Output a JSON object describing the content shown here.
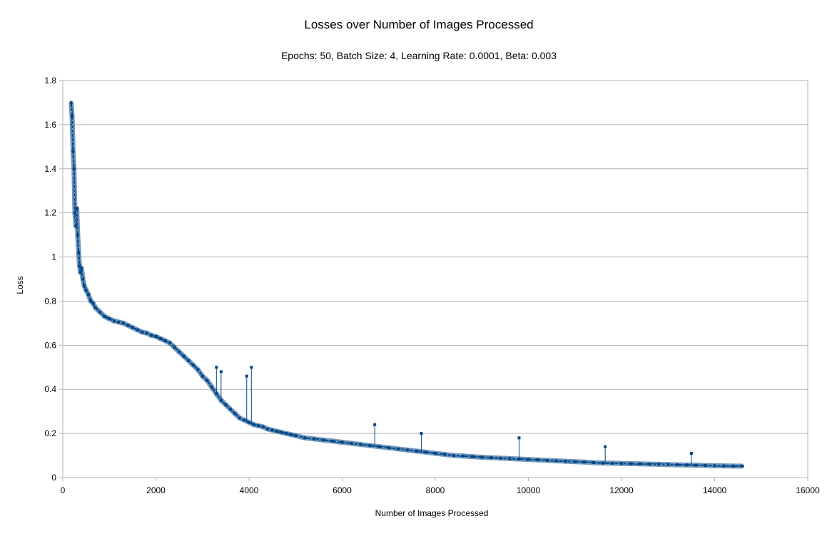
{
  "chart_data": {
    "type": "line",
    "title": "Losses over Number of Images Processed",
    "subtitle": "Epochs: 50, Batch Size: 4, Learning Rate: 0.0001, Beta: 0.003",
    "xlabel": "Number of Images Processed",
    "ylabel": "Loss",
    "xlim": [
      0,
      16000
    ],
    "ylim": [
      0,
      1.8
    ],
    "x_ticks": [
      0,
      2000,
      4000,
      6000,
      8000,
      10000,
      12000,
      14000,
      16000
    ],
    "y_ticks": [
      0,
      0.2,
      0.4,
      0.6,
      0.8,
      1,
      1.2,
      1.4,
      1.6,
      1.8
    ],
    "grid": "horizontal",
    "legend": "none",
    "series_color": "#004586",
    "series": [
      {
        "x": [
          180,
          200,
          220,
          240,
          260,
          280,
          300,
          320,
          340,
          360,
          380,
          400,
          430,
          460,
          500,
          550,
          600,
          650,
          700,
          800,
          900,
          1000,
          1100,
          1200,
          1300,
          1400,
          1500,
          1600,
          1700,
          1800,
          1900,
          2000,
          2100,
          2200,
          2300,
          2400,
          2500,
          2600,
          2700,
          2800,
          2900,
          3000,
          3100,
          3200,
          3300,
          3400,
          3500,
          3600,
          3700,
          3800,
          3900,
          4000,
          4100,
          4200,
          4300,
          4400,
          4500,
          4600,
          4700,
          4800,
          4900,
          5000,
          5200,
          5400,
          5600,
          5800,
          6000,
          6200,
          6400,
          6600,
          6800,
          7000,
          7200,
          7400,
          7600,
          7800,
          8000,
          8200,
          8400,
          8600,
          8800,
          9000,
          9200,
          9400,
          9600,
          9800,
          10000,
          10200,
          10400,
          10600,
          10800,
          11000,
          11200,
          11400,
          11600,
          11800,
          12000,
          12200,
          12400,
          12600,
          12800,
          13000,
          13200,
          13400,
          13600,
          13800,
          14000,
          14200,
          14400,
          14600
        ],
        "values": [
          1.7,
          1.64,
          1.48,
          1.4,
          1.2,
          1.14,
          1.22,
          1.1,
          1.02,
          0.96,
          0.93,
          0.95,
          0.9,
          0.87,
          0.85,
          0.83,
          0.8,
          0.79,
          0.77,
          0.75,
          0.73,
          0.72,
          0.71,
          0.705,
          0.7,
          0.69,
          0.68,
          0.67,
          0.66,
          0.655,
          0.645,
          0.64,
          0.63,
          0.62,
          0.61,
          0.59,
          0.57,
          0.55,
          0.53,
          0.51,
          0.49,
          0.46,
          0.44,
          0.41,
          0.38,
          0.35,
          0.33,
          0.31,
          0.29,
          0.27,
          0.26,
          0.25,
          0.24,
          0.235,
          0.23,
          0.22,
          0.215,
          0.21,
          0.205,
          0.2,
          0.195,
          0.19,
          0.18,
          0.175,
          0.17,
          0.165,
          0.16,
          0.155,
          0.15,
          0.145,
          0.14,
          0.135,
          0.13,
          0.125,
          0.12,
          0.115,
          0.11,
          0.105,
          0.1,
          0.098,
          0.095,
          0.092,
          0.09,
          0.088,
          0.086,
          0.084,
          0.082,
          0.08,
          0.078,
          0.076,
          0.074,
          0.072,
          0.07,
          0.068,
          0.066,
          0.065,
          0.064,
          0.063,
          0.062,
          0.061,
          0.06,
          0.059,
          0.058,
          0.057,
          0.056,
          0.055,
          0.054,
          0.053,
          0.052,
          0.052
        ]
      }
    ],
    "spikes": [
      {
        "x": 3300,
        "y": 0.5
      },
      {
        "x": 3400,
        "y": 0.48
      },
      {
        "x": 3950,
        "y": 0.46
      },
      {
        "x": 4050,
        "y": 0.5
      },
      {
        "x": 6700,
        "y": 0.24
      },
      {
        "x": 7700,
        "y": 0.2
      },
      {
        "x": 9800,
        "y": 0.18
      },
      {
        "x": 11650,
        "y": 0.14
      },
      {
        "x": 13500,
        "y": 0.11
      }
    ]
  }
}
